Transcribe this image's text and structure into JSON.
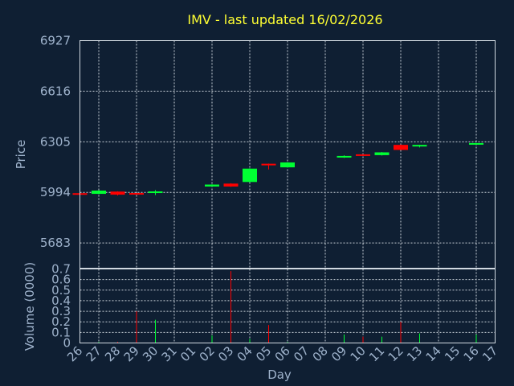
{
  "colors": {
    "up": "#00ff33",
    "down": "#ff0000",
    "background": "#0f1f33",
    "title": "#ffff33",
    "text": "#9fb3cc"
  },
  "chart_data": [
    {
      "type": "candlestick",
      "title": "IMV - last updated 16/02/2026",
      "ylabel": "Price",
      "ylim": [
        5528,
        6927
      ],
      "yticks": [
        6927,
        6616,
        6305,
        5994,
        5683
      ],
      "grid": true,
      "categories": [
        "26",
        "27",
        "28",
        "29",
        "30",
        "31",
        "01",
        "02",
        "03",
        "04",
        "05",
        "06",
        "07",
        "08",
        "09",
        "10",
        "11",
        "12",
        "13",
        "14",
        "15",
        "16",
        "17"
      ],
      "candles": [
        {
          "x": "26",
          "open": 5989,
          "close": 5985,
          "high": 5990,
          "low": 5984
        },
        {
          "x": "27",
          "open": 5985,
          "close": 6005,
          "high": 6008,
          "low": 5983
        },
        {
          "x": "28",
          "open": 5999,
          "close": 5980,
          "high": 6001,
          "low": 5975
        },
        {
          "x": "29",
          "open": 5990,
          "close": 5982,
          "high": 5991,
          "low": 5980
        },
        {
          "x": "30",
          "open": 5994,
          "close": 6000,
          "high": 6008,
          "low": 5978
        },
        {
          "x": "02",
          "open": 6030,
          "close": 6042,
          "high": 6044,
          "low": 6029
        },
        {
          "x": "03",
          "open": 6048,
          "close": 6030,
          "high": 6050,
          "low": 6028
        },
        {
          "x": "04",
          "open": 6058,
          "close": 6140,
          "high": 6142,
          "low": 6056
        },
        {
          "x": "05",
          "open": 6170,
          "close": 6165,
          "high": 6171,
          "low": 6135
        },
        {
          "x": "06",
          "open": 6148,
          "close": 6178,
          "high": 6180,
          "low": 6146
        },
        {
          "x": "09",
          "open": 6213,
          "close": 6218,
          "high": 6222,
          "low": 6206
        },
        {
          "x": "10",
          "open": 6228,
          "close": 6220,
          "high": 6229,
          "low": 6219
        },
        {
          "x": "11",
          "open": 6223,
          "close": 6240,
          "high": 6242,
          "low": 6221
        },
        {
          "x": "12",
          "open": 6286,
          "close": 6255,
          "high": 6288,
          "low": 6254
        },
        {
          "x": "13",
          "open": 6281,
          "close": 6286,
          "high": 6287,
          "low": 6270
        },
        {
          "x": "16",
          "open": 6291,
          "close": 6297,
          "high": 6298,
          "low": 6290
        }
      ]
    },
    {
      "type": "bar",
      "ylabel": "Volume (0000)",
      "xlabel": "Day",
      "ylim": [
        0,
        0.7
      ],
      "yticks": [
        "0.7",
        "0.6",
        "0.5",
        "0.4",
        "0.3",
        "0.2",
        "0.1",
        "0"
      ],
      "grid": true,
      "categories": [
        "26",
        "27",
        "28",
        "29",
        "30",
        "31",
        "01",
        "02",
        "03",
        "04",
        "05",
        "06",
        "07",
        "08",
        "09",
        "10",
        "11",
        "12",
        "13",
        "14",
        "15",
        "16",
        "17"
      ],
      "bars": [
        {
          "x": "26",
          "value": 0.01,
          "direction": "down"
        },
        {
          "x": "27",
          "value": 0.01,
          "direction": "up"
        },
        {
          "x": "28",
          "value": 0.01,
          "direction": "down"
        },
        {
          "x": "29",
          "value": 0.3,
          "direction": "down"
        },
        {
          "x": "30",
          "value": 0.22,
          "direction": "up"
        },
        {
          "x": "02",
          "value": 0.07,
          "direction": "up"
        },
        {
          "x": "03",
          "value": 0.68,
          "direction": "down"
        },
        {
          "x": "04",
          "value": 0.04,
          "direction": "up"
        },
        {
          "x": "05",
          "value": 0.17,
          "direction": "down"
        },
        {
          "x": "06",
          "value": 0.01,
          "direction": "up"
        },
        {
          "x": "09",
          "value": 0.08,
          "direction": "up"
        },
        {
          "x": "10",
          "value": 0.06,
          "direction": "down"
        },
        {
          "x": "11",
          "value": 0.06,
          "direction": "up"
        },
        {
          "x": "12",
          "value": 0.2,
          "direction": "down"
        },
        {
          "x": "13",
          "value": 0.09,
          "direction": "up"
        },
        {
          "x": "16",
          "value": 0.08,
          "direction": "up"
        }
      ]
    }
  ]
}
